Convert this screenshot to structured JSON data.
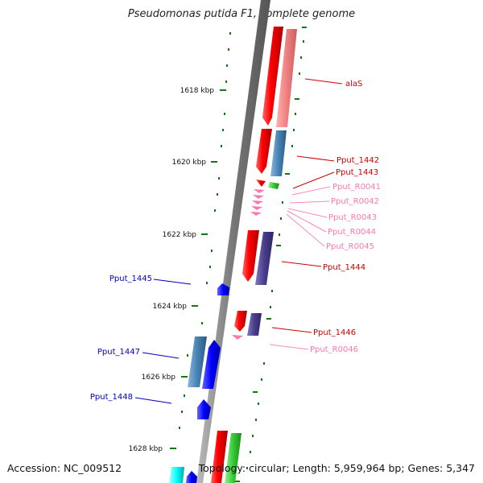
{
  "title": "Pseudomonas putida F1, complete genome",
  "accession": "Accession: NC_009512",
  "summary": "Topology: circular; Length: 5,959,964 bp; Genes: 5,347",
  "scale_ticks": [
    "1618 kbp",
    "1620 kbp",
    "1622 kbp",
    "1624 kbp",
    "1626 kbp",
    "1628 kbp"
  ],
  "gene_labels": {
    "alaS": "alaS",
    "Pput_1442": "Pput_1442",
    "Pput_1443": "Pput_1443",
    "Pput_R0041": "Pput_R0041",
    "Pput_R0042": "Pput_R0042",
    "Pput_R0043": "Pput_R0043",
    "Pput_R0044": "Pput_R0044",
    "Pput_R0045": "Pput_R0045",
    "Pput_1444": "Pput_1444",
    "Pput_1445": "Pput_1445",
    "Pput_1446": "Pput_1446",
    "Pput_R0046": "Pput_R0046",
    "Pput_1447": "Pput_1447",
    "Pput_1448": "Pput_1448"
  },
  "colors": {
    "backbone": "#888888",
    "forward_cds": "#ff0000",
    "forward_gene": "#f08080",
    "reverse_cds": "#0000ff",
    "gene_steelblue": "#4682b4",
    "gene_slate": "#483d8b",
    "rRNA_green": "#33cc33",
    "tRNA_pink": "#ff69b4",
    "cyan_feature": "#00ffff",
    "forward_label": "#cc0000",
    "rna_label": "#ff77aa",
    "reverse_label": "#0000bb",
    "tick": "#006600"
  }
}
